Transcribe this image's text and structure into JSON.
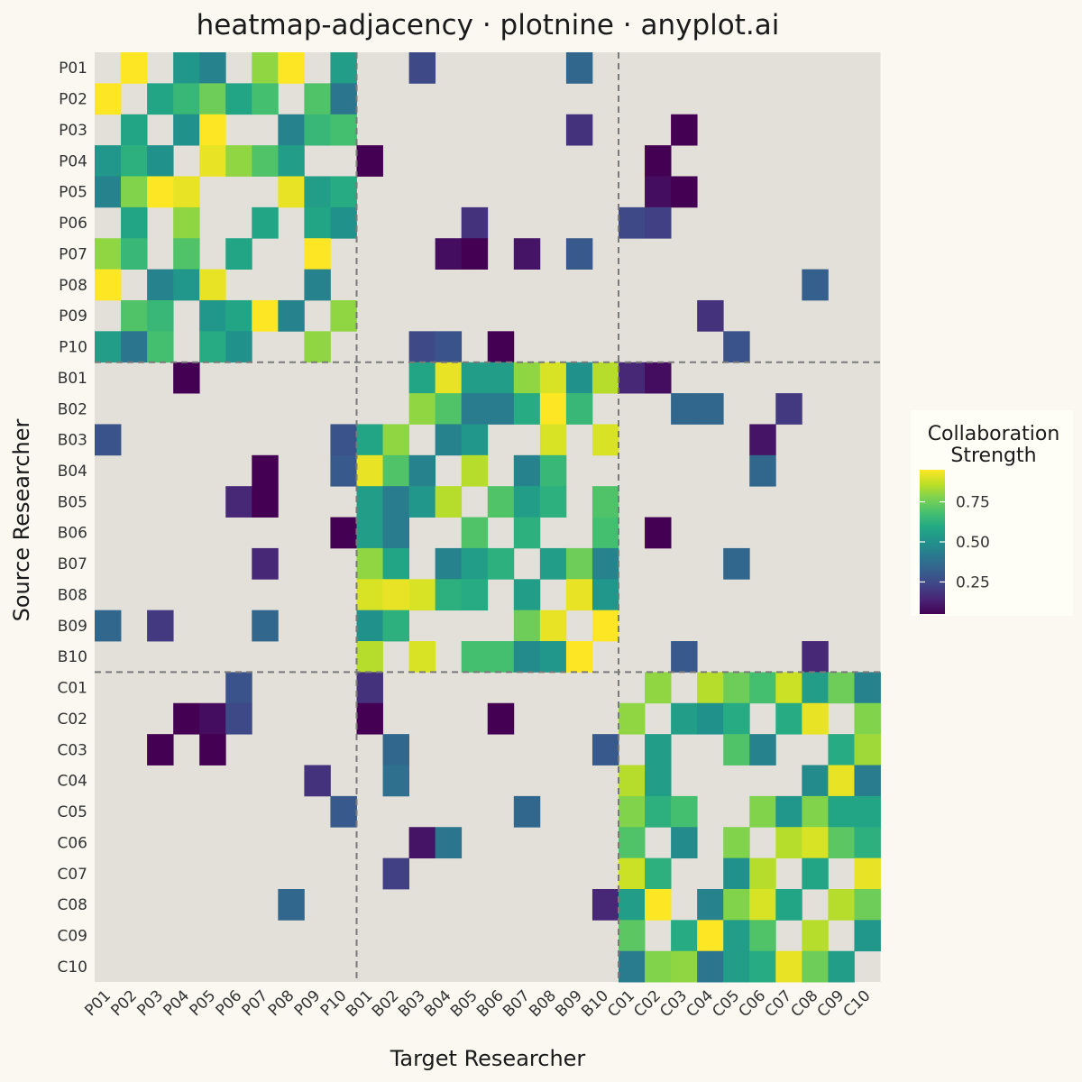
{
  "chart_data": {
    "type": "heatmap",
    "title": "heatmap-adjacency · plotnine · anyplot.ai",
    "xlabel": "Target Researcher",
    "ylabel": "Source Researcher",
    "labels": [
      "P01",
      "P02",
      "P03",
      "P04",
      "P05",
      "P06",
      "P07",
      "P08",
      "P09",
      "P10",
      "B01",
      "B02",
      "B03",
      "B04",
      "B05",
      "B06",
      "B07",
      "B08",
      "B09",
      "B10",
      "C01",
      "C02",
      "C03",
      "C04",
      "C05",
      "C06",
      "C07",
      "C08",
      "C09",
      "C10"
    ],
    "group_boundaries_after": [
      10,
      20
    ],
    "legend": {
      "title_lines": [
        "Collaboration",
        "Strength"
      ],
      "ticks": [
        0.25,
        0.5,
        0.75
      ],
      "tick_labels": [
        "0.25",
        "0.50",
        "0.75"
      ],
      "range": [
        0.05,
        0.95
      ],
      "placement": "right"
    },
    "edges": [
      [
        "P01",
        "P02",
        0.95
      ],
      [
        "P01",
        "P04",
        0.52
      ],
      [
        "P01",
        "P05",
        0.45
      ],
      [
        "P01",
        "P07",
        0.8
      ],
      [
        "P01",
        "P08",
        0.95
      ],
      [
        "P01",
        "P10",
        0.55
      ],
      [
        "P01",
        "B03",
        0.25
      ],
      [
        "P01",
        "B09",
        0.35
      ],
      [
        "P02",
        "P01",
        0.95
      ],
      [
        "P02",
        "P03",
        0.58
      ],
      [
        "P02",
        "P04",
        0.65
      ],
      [
        "P02",
        "P05",
        0.75
      ],
      [
        "P02",
        "P06",
        0.58
      ],
      [
        "P02",
        "P07",
        0.68
      ],
      [
        "P02",
        "P09",
        0.7
      ],
      [
        "P02",
        "P10",
        0.4
      ],
      [
        "P03",
        "P02",
        0.58
      ],
      [
        "P03",
        "P04",
        0.5
      ],
      [
        "P03",
        "P05",
        0.95
      ],
      [
        "P03",
        "P08",
        0.45
      ],
      [
        "P03",
        "P09",
        0.65
      ],
      [
        "P03",
        "P10",
        0.68
      ],
      [
        "P03",
        "B09",
        0.18
      ],
      [
        "P03",
        "C03",
        0.05
      ],
      [
        "P04",
        "P01",
        0.52
      ],
      [
        "P04",
        "P02",
        0.62
      ],
      [
        "P04",
        "P03",
        0.5
      ],
      [
        "P04",
        "P05",
        0.92
      ],
      [
        "P04",
        "P06",
        0.8
      ],
      [
        "P04",
        "P07",
        0.7
      ],
      [
        "P04",
        "P08",
        0.55
      ],
      [
        "P04",
        "B01",
        0.05
      ],
      [
        "P04",
        "C02",
        0.05
      ],
      [
        "P05",
        "P01",
        0.45
      ],
      [
        "P05",
        "P02",
        0.78
      ],
      [
        "P05",
        "P03",
        0.95
      ],
      [
        "P05",
        "P04",
        0.92
      ],
      [
        "P05",
        "P08",
        0.92
      ],
      [
        "P05",
        "P09",
        0.55
      ],
      [
        "P05",
        "P10",
        0.6
      ],
      [
        "P05",
        "C02",
        0.08
      ],
      [
        "P05",
        "C03",
        0.05
      ],
      [
        "P06",
        "P02",
        0.58
      ],
      [
        "P06",
        "P04",
        0.8
      ],
      [
        "P06",
        "P07",
        0.58
      ],
      [
        "P06",
        "P09",
        0.58
      ],
      [
        "P06",
        "P10",
        0.5
      ],
      [
        "P06",
        "B05",
        0.18
      ],
      [
        "P06",
        "C01",
        0.25
      ],
      [
        "P06",
        "C02",
        0.22
      ],
      [
        "P07",
        "P01",
        0.8
      ],
      [
        "P07",
        "P02",
        0.65
      ],
      [
        "P07",
        "P04",
        0.7
      ],
      [
        "P07",
        "P06",
        0.58
      ],
      [
        "P07",
        "P09",
        0.95
      ],
      [
        "P07",
        "B04",
        0.08
      ],
      [
        "P07",
        "B05",
        0.05
      ],
      [
        "P07",
        "B07",
        0.1
      ],
      [
        "P07",
        "B09",
        0.3
      ],
      [
        "P08",
        "P01",
        0.95
      ],
      [
        "P08",
        "P03",
        0.45
      ],
      [
        "P08",
        "P04",
        0.52
      ],
      [
        "P08",
        "P05",
        0.92
      ],
      [
        "P08",
        "P09",
        0.45
      ],
      [
        "P08",
        "C08",
        0.32
      ],
      [
        "P09",
        "P02",
        0.7
      ],
      [
        "P09",
        "P03",
        0.65
      ],
      [
        "P09",
        "P05",
        0.52
      ],
      [
        "P09",
        "P06",
        0.58
      ],
      [
        "P09",
        "P07",
        0.95
      ],
      [
        "P09",
        "P08",
        0.45
      ],
      [
        "P09",
        "P10",
        0.8
      ],
      [
        "P09",
        "C04",
        0.18
      ],
      [
        "P10",
        "P01",
        0.55
      ],
      [
        "P10",
        "P02",
        0.4
      ],
      [
        "P10",
        "P03",
        0.68
      ],
      [
        "P10",
        "P05",
        0.6
      ],
      [
        "P10",
        "P06",
        0.5
      ],
      [
        "P10",
        "P09",
        0.8
      ],
      [
        "P10",
        "B03",
        0.25
      ],
      [
        "P10",
        "B04",
        0.28
      ],
      [
        "P10",
        "B06",
        0.05
      ],
      [
        "P10",
        "C05",
        0.28
      ],
      [
        "B01",
        "P04",
        0.05
      ],
      [
        "B01",
        "B03",
        0.58
      ],
      [
        "B01",
        "B04",
        0.92
      ],
      [
        "B01",
        "B05",
        0.55
      ],
      [
        "B01",
        "B06",
        0.55
      ],
      [
        "B01",
        "B07",
        0.8
      ],
      [
        "B01",
        "B08",
        0.9
      ],
      [
        "B01",
        "B09",
        0.5
      ],
      [
        "B01",
        "B10",
        0.85
      ],
      [
        "B01",
        "C01",
        0.15
      ],
      [
        "B01",
        "C02",
        0.08
      ],
      [
        "B02",
        "B03",
        0.8
      ],
      [
        "B02",
        "B04",
        0.7
      ],
      [
        "B02",
        "B05",
        0.42
      ],
      [
        "B02",
        "B06",
        0.42
      ],
      [
        "B02",
        "B07",
        0.6
      ],
      [
        "B02",
        "B08",
        0.95
      ],
      [
        "B02",
        "B09",
        0.65
      ],
      [
        "B02",
        "C03",
        0.35
      ],
      [
        "B02",
        "C04",
        0.35
      ],
      [
        "B02",
        "C07",
        0.2
      ],
      [
        "B03",
        "P01",
        0.28
      ],
      [
        "B03",
        "P10",
        0.28
      ],
      [
        "B03",
        "B01",
        0.58
      ],
      [
        "B03",
        "B02",
        0.8
      ],
      [
        "B03",
        "B04",
        0.45
      ],
      [
        "B03",
        "B05",
        0.52
      ],
      [
        "B03",
        "B08",
        0.9
      ],
      [
        "B03",
        "B10",
        0.9
      ],
      [
        "B03",
        "C06",
        0.1
      ],
      [
        "B04",
        "P07",
        0.05
      ],
      [
        "B04",
        "P10",
        0.3
      ],
      [
        "B04",
        "B01",
        0.92
      ],
      [
        "B04",
        "B02",
        0.7
      ],
      [
        "B04",
        "B03",
        0.45
      ],
      [
        "B04",
        "B05",
        0.85
      ],
      [
        "B04",
        "B07",
        0.45
      ],
      [
        "B04",
        "B08",
        0.65
      ],
      [
        "B04",
        "C06",
        0.35
      ],
      [
        "B05",
        "P06",
        0.15
      ],
      [
        "B05",
        "P07",
        0.05
      ],
      [
        "B05",
        "B01",
        0.55
      ],
      [
        "B05",
        "B02",
        0.42
      ],
      [
        "B05",
        "B03",
        0.52
      ],
      [
        "B05",
        "B04",
        0.85
      ],
      [
        "B05",
        "B06",
        0.7
      ],
      [
        "B05",
        "B07",
        0.55
      ],
      [
        "B05",
        "B08",
        0.62
      ],
      [
        "B05",
        "B10",
        0.7
      ],
      [
        "B06",
        "P10",
        0.05
      ],
      [
        "B06",
        "B01",
        0.55
      ],
      [
        "B06",
        "B02",
        0.42
      ],
      [
        "B06",
        "B05",
        0.7
      ],
      [
        "B06",
        "B07",
        0.62
      ],
      [
        "B06",
        "B10",
        0.68
      ],
      [
        "B06",
        "C02",
        0.05
      ],
      [
        "B07",
        "P07",
        0.15
      ],
      [
        "B07",
        "B01",
        0.8
      ],
      [
        "B07",
        "B02",
        0.58
      ],
      [
        "B07",
        "B04",
        0.45
      ],
      [
        "B07",
        "B05",
        0.55
      ],
      [
        "B07",
        "B06",
        0.62
      ],
      [
        "B07",
        "B08",
        0.55
      ],
      [
        "B07",
        "B09",
        0.75
      ],
      [
        "B07",
        "B10",
        0.45
      ],
      [
        "B07",
        "C05",
        0.35
      ],
      [
        "B08",
        "B01",
        0.9
      ],
      [
        "B08",
        "B02",
        0.92
      ],
      [
        "B08",
        "B03",
        0.9
      ],
      [
        "B08",
        "B04",
        0.62
      ],
      [
        "B08",
        "B05",
        0.6
      ],
      [
        "B08",
        "B07",
        0.55
      ],
      [
        "B08",
        "B09",
        0.92
      ],
      [
        "B08",
        "B10",
        0.52
      ],
      [
        "B09",
        "P01",
        0.35
      ],
      [
        "B09",
        "P03",
        0.2
      ],
      [
        "B09",
        "P07",
        0.35
      ],
      [
        "B09",
        "B01",
        0.5
      ],
      [
        "B09",
        "B02",
        0.62
      ],
      [
        "B09",
        "B07",
        0.75
      ],
      [
        "B09",
        "B08",
        0.92
      ],
      [
        "B09",
        "B10",
        0.95
      ],
      [
        "B10",
        "B01",
        0.85
      ],
      [
        "B10",
        "B03",
        0.9
      ],
      [
        "B10",
        "B05",
        0.68
      ],
      [
        "B10",
        "B06",
        0.68
      ],
      [
        "B10",
        "B07",
        0.48
      ],
      [
        "B10",
        "B08",
        0.52
      ],
      [
        "B10",
        "B09",
        0.95
      ],
      [
        "B10",
        "C03",
        0.3
      ],
      [
        "B10",
        "C08",
        0.15
      ],
      [
        "C01",
        "P06",
        0.28
      ],
      [
        "C01",
        "B01",
        0.18
      ],
      [
        "C01",
        "C02",
        0.8
      ],
      [
        "C01",
        "C04",
        0.85
      ],
      [
        "C01",
        "C05",
        0.75
      ],
      [
        "C01",
        "C06",
        0.68
      ],
      [
        "C01",
        "C07",
        0.88
      ],
      [
        "C01",
        "C08",
        0.55
      ],
      [
        "C01",
        "C09",
        0.75
      ],
      [
        "C01",
        "C10",
        0.45
      ],
      [
        "C02",
        "P04",
        0.05
      ],
      [
        "C02",
        "P05",
        0.08
      ],
      [
        "C02",
        "P06",
        0.25
      ],
      [
        "C02",
        "B01",
        0.05
      ],
      [
        "C02",
        "B06",
        0.05
      ],
      [
        "C02",
        "C01",
        0.8
      ],
      [
        "C02",
        "C03",
        0.55
      ],
      [
        "C02",
        "C04",
        0.5
      ],
      [
        "C02",
        "C05",
        0.6
      ],
      [
        "C02",
        "C07",
        0.6
      ],
      [
        "C02",
        "C08",
        0.92
      ],
      [
        "C02",
        "C10",
        0.78
      ],
      [
        "C03",
        "P03",
        0.05
      ],
      [
        "C03",
        "P05",
        0.05
      ],
      [
        "C03",
        "B02",
        0.35
      ],
      [
        "C03",
        "B10",
        0.3
      ],
      [
        "C03",
        "C02",
        0.55
      ],
      [
        "C03",
        "C05",
        0.7
      ],
      [
        "C03",
        "C06",
        0.45
      ],
      [
        "C03",
        "C09",
        0.6
      ],
      [
        "C03",
        "C10",
        0.82
      ],
      [
        "C04",
        "P09",
        0.18
      ],
      [
        "C04",
        "B02",
        0.38
      ],
      [
        "C04",
        "C01",
        0.85
      ],
      [
        "C04",
        "C02",
        0.55
      ],
      [
        "C04",
        "C08",
        0.48
      ],
      [
        "C04",
        "C09",
        0.92
      ],
      [
        "C04",
        "C10",
        0.42
      ],
      [
        "C05",
        "P10",
        0.3
      ],
      [
        "C05",
        "B07",
        0.35
      ],
      [
        "C05",
        "C01",
        0.78
      ],
      [
        "C05",
        "C02",
        0.62
      ],
      [
        "C05",
        "C03",
        0.68
      ],
      [
        "C05",
        "C06",
        0.78
      ],
      [
        "C05",
        "C07",
        0.52
      ],
      [
        "C05",
        "C08",
        0.78
      ],
      [
        "C05",
        "C09",
        0.58
      ],
      [
        "C05",
        "C10",
        0.58
      ],
      [
        "C06",
        "B03",
        0.1
      ],
      [
        "C06",
        "B04",
        0.4
      ],
      [
        "C06",
        "C01",
        0.7
      ],
      [
        "C06",
        "C03",
        0.48
      ],
      [
        "C06",
        "C05",
        0.78
      ],
      [
        "C06",
        "C07",
        0.85
      ],
      [
        "C06",
        "C08",
        0.9
      ],
      [
        "C06",
        "C09",
        0.72
      ],
      [
        "C06",
        "C10",
        0.62
      ],
      [
        "C07",
        "B02",
        0.22
      ],
      [
        "C07",
        "C01",
        0.88
      ],
      [
        "C07",
        "C02",
        0.62
      ],
      [
        "C07",
        "C05",
        0.5
      ],
      [
        "C07",
        "C06",
        0.85
      ],
      [
        "C07",
        "C08",
        0.58
      ],
      [
        "C07",
        "C10",
        0.92
      ],
      [
        "C08",
        "P08",
        0.35
      ],
      [
        "C08",
        "B10",
        0.15
      ],
      [
        "C08",
        "C01",
        0.55
      ],
      [
        "C08",
        "C02",
        0.95
      ],
      [
        "C08",
        "C04",
        0.45
      ],
      [
        "C08",
        "C05",
        0.78
      ],
      [
        "C08",
        "C06",
        0.9
      ],
      [
        "C08",
        "C07",
        0.58
      ],
      [
        "C08",
        "C09",
        0.85
      ],
      [
        "C08",
        "C10",
        0.75
      ],
      [
        "C09",
        "C01",
        0.72
      ],
      [
        "C09",
        "C03",
        0.6
      ],
      [
        "C09",
        "C04",
        0.95
      ],
      [
        "C09",
        "C05",
        0.55
      ],
      [
        "C09",
        "C06",
        0.7
      ],
      [
        "C09",
        "C08",
        0.85
      ],
      [
        "C09",
        "C10",
        0.52
      ],
      [
        "C10",
        "C01",
        0.42
      ],
      [
        "C10",
        "C02",
        0.78
      ],
      [
        "C10",
        "C03",
        0.8
      ],
      [
        "C10",
        "C04",
        0.4
      ],
      [
        "C10",
        "C05",
        0.55
      ],
      [
        "C10",
        "C06",
        0.6
      ],
      [
        "C10",
        "C07",
        0.92
      ],
      [
        "C10",
        "C08",
        0.75
      ],
      [
        "C10",
        "C09",
        0.55
      ]
    ],
    "colors": {
      "background": "#FAF8F1",
      "panel": "#E3E0DA",
      "divider": "#7A7A7A",
      "colormap": "viridis"
    }
  }
}
